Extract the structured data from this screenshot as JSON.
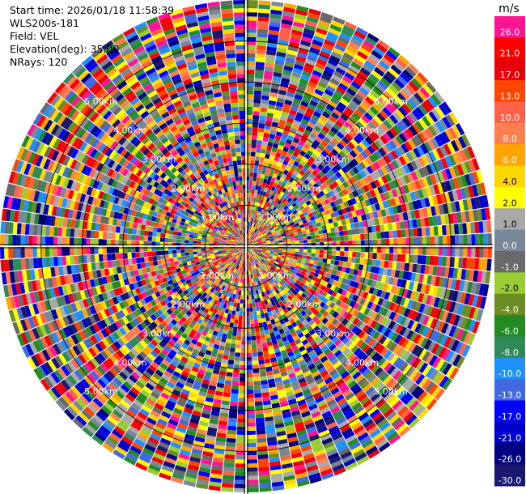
{
  "info": {
    "start_time": "Start time: 2026/01/18 11:58:39",
    "instrument": "WLS200s-181",
    "field": "Field: VEL",
    "elevation": "Elevation(deg): 35.00",
    "nrays": "NRays: 120"
  },
  "chart_data": {
    "type": "heatmap",
    "projection": "polar-ppi",
    "field": "VEL",
    "units": "m/s",
    "n_rays": 120,
    "n_gates": 60,
    "max_range_km": 6.0,
    "range_rings_km": [
      1.0,
      2.0,
      3.0,
      4.0,
      5.0
    ],
    "ring_labels": [
      "1.00km",
      "2.00km",
      "3.00km",
      "4.00km",
      "5.00km"
    ],
    "colorbar": {
      "label": "m/s",
      "ticks": [
        "26.0",
        "21.0",
        "17.0",
        "13.0",
        "10.0",
        "8.0",
        "6.0",
        "4.0",
        "2.0",
        "1.0",
        "0.0",
        "-1.0",
        "-2.0",
        "-4.0",
        "-6.0",
        "-8.0",
        "-10.0",
        "-13.0",
        "-17.0",
        "-21.0",
        "-26.0",
        "-30.0"
      ],
      "colors": [
        "#ff1493",
        "#ff0000",
        "#e8000a",
        "#ff4500",
        "#ff6347",
        "#ff7f50",
        "#ffa500",
        "#ffd700",
        "#ffff00",
        "#a9a9a9",
        "#778899",
        "#696969",
        "#9acd32",
        "#6b8e23",
        "#228b22",
        "#2e8b57",
        "#1e90ff",
        "#4169e1",
        "#0000ff",
        "#0000cd",
        "#000080",
        "#191970"
      ]
    }
  }
}
